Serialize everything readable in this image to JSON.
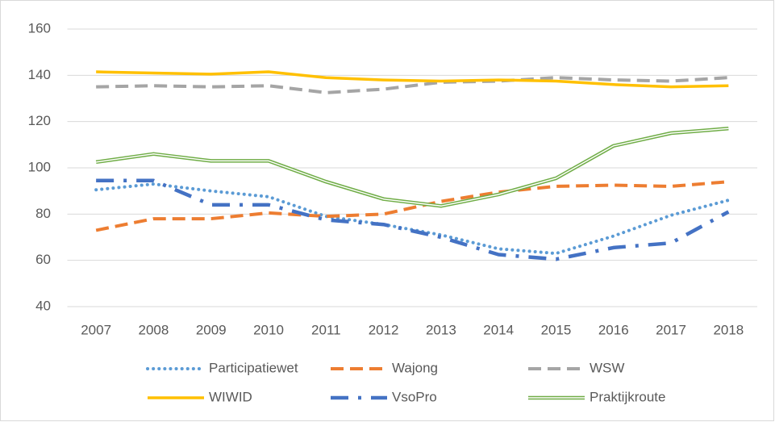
{
  "chart_data": {
    "type": "line",
    "categories": [
      "2007",
      "2008",
      "2009",
      "2010",
      "2011",
      "2012",
      "2013",
      "2014",
      "2015",
      "2016",
      "2017",
      "2018"
    ],
    "series": [
      {
        "name": "Participatiewet",
        "color": "#5b9bd5",
        "style": "dotted",
        "values": [
          90.5,
          93,
          90,
          87.5,
          79,
          75.5,
          71,
          65,
          63,
          70.5,
          79.5,
          86
        ]
      },
      {
        "name": "Wajong",
        "color": "#ed7d31",
        "style": "dashed",
        "values": [
          73,
          78,
          78,
          80.5,
          79,
          80,
          85.5,
          89.5,
          92,
          92.5,
          92,
          94
        ]
      },
      {
        "name": "WSW",
        "color": "#a5a5a5",
        "style": "dashed",
        "values": [
          135,
          135.5,
          135,
          135.5,
          132.5,
          134,
          137,
          137.5,
          139,
          138,
          137.5,
          139
        ]
      },
      {
        "name": "WIWID",
        "color": "#ffc000",
        "style": "solid",
        "values": [
          141.5,
          141,
          140.5,
          141.5,
          139,
          138,
          137.5,
          138,
          137.5,
          136,
          135,
          135.5
        ]
      },
      {
        "name": "VsoPro",
        "color": "#4472c4",
        "style": "dashdot",
        "values": [
          94.5,
          94.5,
          84,
          84,
          77.5,
          75.5,
          70,
          62.5,
          60.5,
          65.5,
          67.5,
          81
        ]
      },
      {
        "name": "Praktijkroute",
        "color": "#70ad47",
        "style": "double",
        "values": [
          102.5,
          106,
          103,
          103,
          94,
          86.5,
          83.5,
          88.5,
          95.5,
          109.5,
          115,
          117
        ]
      }
    ],
    "ylim": [
      40,
      160
    ],
    "yticks": [
      40,
      60,
      80,
      100,
      120,
      140,
      160
    ],
    "grid": true,
    "legend": "bottom"
  }
}
